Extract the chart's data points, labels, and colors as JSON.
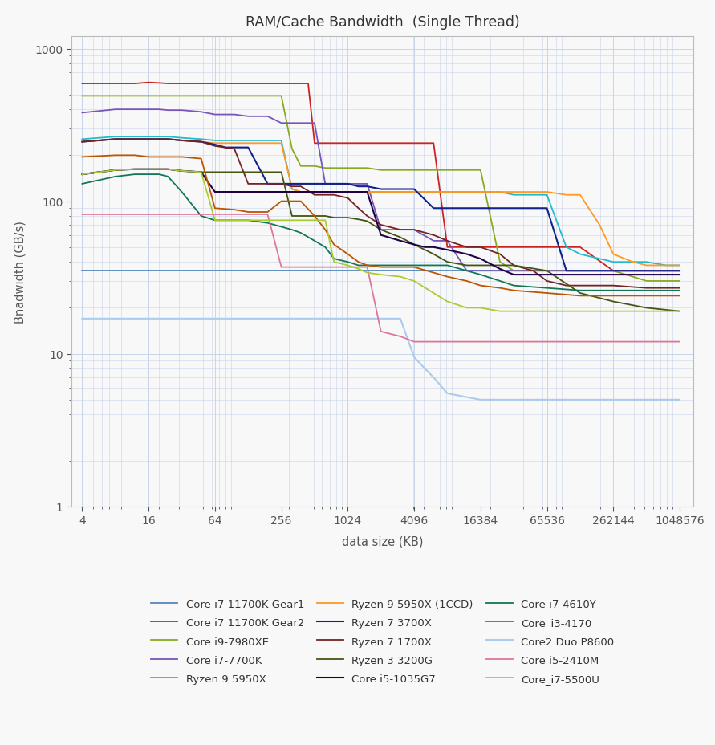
{
  "title": "RAM/Cache Bandwidth  (Single Thread)",
  "xlabel": "data size (KB)",
  "ylabel": "Bnadwidth (GB/s)",
  "x_ticks": [
    4,
    16,
    64,
    256,
    1024,
    4096,
    16384,
    65536,
    262144,
    1048576
  ],
  "y_ticks": [
    1,
    10,
    100,
    1000
  ],
  "background": "#f8f8f8",
  "grid_color": "#c8d4e8",
  "series": [
    {
      "label": "Core i7 11700K Gear1",
      "color": "#5588bb",
      "linewidth": 1.3,
      "x": [
        4,
        8,
        12,
        16,
        20,
        24,
        32,
        48,
        64,
        96,
        128,
        192,
        256,
        384,
        512,
        768,
        1024,
        1536,
        2048,
        3072,
        4096,
        6144,
        8192,
        12288,
        16384,
        24576,
        32768,
        65536,
        131072,
        262144,
        524288,
        1048576
      ],
      "y": [
        35,
        35,
        35,
        35,
        35,
        35,
        35,
        35,
        35,
        35,
        35,
        35,
        35,
        35,
        35,
        35,
        35,
        35,
        35,
        35,
        35,
        35,
        35,
        35,
        35,
        35,
        35,
        35,
        35,
        35,
        35,
        35
      ]
    },
    {
      "label": "Core i7 11700K Gear2",
      "color": "#cc2222",
      "linewidth": 1.3,
      "x": [
        4,
        8,
        12,
        16,
        20,
        24,
        32,
        48,
        64,
        80,
        96,
        112,
        128,
        192,
        256,
        320,
        384,
        448,
        512,
        640,
        768,
        1024,
        1280,
        1536,
        2048,
        2560,
        3072,
        4096,
        5120,
        6144,
        8192,
        12288,
        16384,
        24576,
        32768,
        65536,
        131072,
        262144,
        524288,
        1048576
      ],
      "y": [
        590,
        590,
        590,
        600,
        595,
        590,
        590,
        590,
        590,
        590,
        590,
        590,
        590,
        590,
        590,
        590,
        590,
        590,
        240,
        240,
        240,
        240,
        240,
        240,
        240,
        240,
        240,
        240,
        240,
        240,
        50,
        50,
        50,
        50,
        50,
        50,
        50,
        35,
        35,
        35
      ]
    },
    {
      "label": "Core i9-7980XE",
      "color": "#88aa22",
      "linewidth": 1.3,
      "x": [
        4,
        8,
        12,
        16,
        20,
        24,
        32,
        48,
        64,
        96,
        128,
        192,
        256,
        320,
        384,
        512,
        640,
        768,
        1024,
        1280,
        1536,
        2048,
        3072,
        4096,
        6144,
        8192,
        12288,
        16384,
        24576,
        32768,
        65536,
        131072,
        262144,
        524288,
        1048576
      ],
      "y": [
        490,
        490,
        490,
        490,
        490,
        490,
        490,
        490,
        490,
        490,
        490,
        490,
        490,
        220,
        170,
        170,
        165,
        165,
        165,
        165,
        165,
        160,
        160,
        160,
        160,
        160,
        160,
        160,
        40,
        35,
        35,
        35,
        35,
        30,
        30
      ]
    },
    {
      "label": "Core i7-7700K",
      "color": "#7755bb",
      "linewidth": 1.3,
      "x": [
        4,
        8,
        12,
        16,
        20,
        24,
        32,
        48,
        64,
        96,
        128,
        192,
        256,
        320,
        384,
        448,
        512,
        640,
        768,
        1024,
        1280,
        1536,
        2048,
        3072,
        4096,
        6144,
        8192,
        12288,
        16384,
        24576,
        32768,
        65536,
        131072,
        262144,
        524288,
        1048576
      ],
      "y": [
        380,
        400,
        400,
        400,
        400,
        395,
        395,
        385,
        370,
        370,
        360,
        360,
        325,
        325,
        325,
        325,
        325,
        130,
        130,
        130,
        130,
        130,
        65,
        65,
        65,
        55,
        55,
        35,
        35,
        35,
        35,
        35,
        35,
        35,
        35,
        35
      ]
    },
    {
      "label": "Ryzen 9 5950X",
      "color": "#22bbcc",
      "linewidth": 1.3,
      "x": [
        4,
        8,
        12,
        16,
        20,
        24,
        32,
        48,
        64,
        96,
        128,
        192,
        256,
        320,
        384,
        512,
        640,
        768,
        1024,
        1280,
        1536,
        2048,
        3072,
        4096,
        6144,
        8192,
        12288,
        16384,
        24576,
        32768,
        49152,
        65536,
        98304,
        131072,
        196608,
        262144,
        393216,
        524288,
        786432,
        1048576
      ],
      "y": [
        255,
        265,
        265,
        265,
        265,
        265,
        260,
        255,
        250,
        250,
        250,
        250,
        250,
        120,
        115,
        115,
        115,
        115,
        115,
        115,
        115,
        115,
        115,
        115,
        115,
        115,
        115,
        115,
        115,
        110,
        110,
        110,
        50,
        45,
        42,
        40,
        40,
        40,
        38,
        38
      ]
    },
    {
      "label": "Ryzen 9 5950X (1CCD)",
      "color": "#ff9922",
      "linewidth": 1.3,
      "x": [
        4,
        8,
        12,
        16,
        20,
        24,
        32,
        48,
        64,
        96,
        128,
        192,
        256,
        320,
        384,
        512,
        768,
        1024,
        1536,
        2048,
        3072,
        4096,
        6144,
        8192,
        12288,
        16384,
        32768,
        49152,
        65536,
        98304,
        131072,
        196608,
        262144,
        393216,
        524288,
        786432,
        1048576
      ],
      "y": [
        245,
        255,
        255,
        255,
        255,
        255,
        250,
        245,
        240,
        240,
        240,
        240,
        240,
        120,
        115,
        115,
        115,
        115,
        115,
        115,
        115,
        115,
        115,
        115,
        115,
        115,
        115,
        115,
        115,
        110,
        110,
        70,
        45,
        40,
        38,
        38,
        38
      ]
    },
    {
      "label": "Ryzen 7 3700X",
      "color": "#112288",
      "linewidth": 1.5,
      "x": [
        4,
        8,
        12,
        16,
        20,
        24,
        32,
        48,
        64,
        80,
        96,
        112,
        128,
        192,
        256,
        320,
        384,
        512,
        640,
        768,
        1024,
        1280,
        1536,
        2048,
        3072,
        4096,
        6144,
        8192,
        12288,
        16384,
        24576,
        32768,
        49152,
        65536,
        98304,
        131072,
        196608,
        262144,
        393216,
        524288,
        786432,
        1048576
      ],
      "y": [
        245,
        255,
        255,
        255,
        255,
        255,
        250,
        245,
        235,
        225,
        225,
        225,
        225,
        130,
        130,
        130,
        130,
        130,
        130,
        130,
        130,
        125,
        125,
        120,
        120,
        120,
        90,
        90,
        90,
        90,
        90,
        90,
        90,
        90,
        35,
        35,
        35,
        35,
        35,
        35,
        35,
        35
      ]
    },
    {
      "label": "Ryzen 7 1700X",
      "color": "#772222",
      "linewidth": 1.3,
      "x": [
        4,
        8,
        12,
        16,
        20,
        24,
        32,
        48,
        64,
        96,
        128,
        192,
        256,
        320,
        384,
        512,
        640,
        768,
        1024,
        1280,
        1536,
        2048,
        3072,
        4096,
        6144,
        8192,
        12288,
        16384,
        24576,
        32768,
        49152,
        65536,
        98304,
        131072,
        262144,
        524288,
        1048576
      ],
      "y": [
        245,
        255,
        255,
        255,
        255,
        255,
        250,
        245,
        230,
        220,
        130,
        130,
        130,
        125,
        125,
        110,
        110,
        110,
        105,
        90,
        80,
        70,
        65,
        65,
        60,
        55,
        50,
        50,
        45,
        38,
        35,
        30,
        28,
        28,
        28,
        27,
        27
      ]
    },
    {
      "label": "Ryzen 3 3200G",
      "color": "#445511",
      "linewidth": 1.3,
      "x": [
        4,
        8,
        12,
        16,
        20,
        24,
        32,
        48,
        64,
        96,
        128,
        192,
        256,
        320,
        384,
        512,
        640,
        768,
        1024,
        1280,
        1536,
        2048,
        3072,
        4096,
        6144,
        8192,
        12288,
        16384,
        24576,
        32768,
        65536,
        131072,
        262144,
        524288,
        1048576
      ],
      "y": [
        150,
        160,
        162,
        162,
        162,
        162,
        158,
        155,
        155,
        155,
        155,
        155,
        155,
        80,
        80,
        80,
        80,
        78,
        78,
        76,
        74,
        65,
        58,
        52,
        45,
        40,
        38,
        38,
        38,
        38,
        35,
        25,
        22,
        20,
        19
      ]
    },
    {
      "label": "Core i5-1035G7",
      "color": "#220044",
      "linewidth": 1.5,
      "x": [
        4,
        8,
        12,
        16,
        20,
        24,
        32,
        48,
        64,
        96,
        128,
        192,
        256,
        320,
        384,
        512,
        640,
        768,
        1024,
        1280,
        1536,
        2048,
        3072,
        4096,
        5120,
        6144,
        8192,
        12288,
        16384,
        24576,
        32768,
        65536,
        131072,
        262144,
        524288,
        1048576
      ],
      "y": [
        150,
        160,
        162,
        162,
        162,
        162,
        158,
        155,
        115,
        115,
        115,
        115,
        115,
        115,
        115,
        115,
        115,
        115,
        115,
        115,
        115,
        60,
        55,
        52,
        50,
        50,
        48,
        45,
        42,
        36,
        33,
        33,
        33,
        33,
        33,
        33
      ]
    },
    {
      "label": "Core i7-4610Y",
      "color": "#117755",
      "linewidth": 1.3,
      "x": [
        4,
        8,
        12,
        16,
        20,
        24,
        32,
        48,
        64,
        96,
        128,
        192,
        256,
        320,
        384,
        512,
        640,
        768,
        1024,
        1280,
        1536,
        2048,
        3072,
        4096,
        6144,
        8192,
        12288,
        16384,
        24576,
        32768,
        65536,
        131072,
        262144,
        524288,
        1048576
      ],
      "y": [
        130,
        145,
        150,
        150,
        150,
        145,
        115,
        80,
        75,
        75,
        75,
        72,
        68,
        65,
        62,
        55,
        50,
        42,
        40,
        38,
        38,
        38,
        38,
        38,
        38,
        38,
        35,
        33,
        30,
        28,
        27,
        26,
        26,
        26,
        26
      ]
    },
    {
      "label": "Core_i3-4170",
      "color": "#bb5500",
      "linewidth": 1.3,
      "x": [
        4,
        8,
        12,
        16,
        20,
        24,
        32,
        48,
        64,
        96,
        128,
        192,
        256,
        320,
        384,
        512,
        640,
        768,
        1024,
        1280,
        1536,
        2048,
        3072,
        4096,
        6144,
        8192,
        12288,
        16384,
        24576,
        32768,
        65536,
        131072,
        262144,
        524288,
        1048576
      ],
      "y": [
        195,
        200,
        200,
        195,
        195,
        195,
        195,
        190,
        90,
        88,
        85,
        85,
        100,
        100,
        100,
        80,
        65,
        52,
        45,
        40,
        38,
        37,
        37,
        37,
        34,
        32,
        30,
        28,
        27,
        26,
        25,
        24,
        24,
        24,
        24
      ]
    },
    {
      "label": "Core2 Duo P8600",
      "color": "#aaccee",
      "linewidth": 1.5,
      "x": [
        4,
        8,
        12,
        16,
        20,
        24,
        32,
        48,
        64,
        96,
        128,
        192,
        256,
        384,
        512,
        768,
        1024,
        1536,
        2048,
        3072,
        4096,
        5120,
        6144,
        8192,
        12288,
        16384,
        32768,
        65536,
        131072,
        262144,
        524288,
        1048576
      ],
      "y": [
        17,
        17,
        17,
        17,
        17,
        17,
        17,
        17,
        17,
        17,
        17,
        17,
        17,
        17,
        17,
        17,
        17,
        17,
        17,
        17,
        9.5,
        8,
        7,
        5.5,
        5.2,
        5.0,
        5.0,
        5.0,
        5.0,
        5.0,
        5.0,
        5.0
      ]
    },
    {
      "label": "Core i5-2410M",
      "color": "#dd7799",
      "linewidth": 1.3,
      "x": [
        4,
        8,
        12,
        16,
        20,
        24,
        32,
        48,
        64,
        96,
        128,
        192,
        256,
        320,
        384,
        512,
        640,
        768,
        1024,
        1280,
        1536,
        2048,
        3072,
        4096,
        6144,
        8192,
        16384,
        32768,
        65536,
        131072,
        262144,
        524288,
        1048576
      ],
      "y": [
        82,
        82,
        82,
        82,
        82,
        82,
        82,
        82,
        82,
        82,
        82,
        82,
        37,
        37,
        37,
        37,
        37,
        37,
        37,
        37,
        37,
        14,
        13,
        12,
        12,
        12,
        12,
        12,
        12,
        12,
        12,
        12,
        12
      ]
    },
    {
      "label": "Core_i7-5500U",
      "color": "#aacc33",
      "linewidth": 1.3,
      "x": [
        4,
        8,
        12,
        16,
        20,
        24,
        32,
        48,
        64,
        96,
        128,
        192,
        256,
        320,
        384,
        512,
        640,
        768,
        1024,
        1280,
        1536,
        2048,
        3072,
        4096,
        6144,
        8192,
        12288,
        16384,
        24576,
        32768,
        65536,
        131072,
        262144,
        524288,
        1048576
      ],
      "y": [
        150,
        160,
        162,
        162,
        162,
        162,
        158,
        155,
        75,
        75,
        75,
        75,
        75,
        75,
        75,
        75,
        75,
        40,
        38,
        36,
        34,
        33,
        32,
        30,
        25,
        22,
        20,
        20,
        19,
        19,
        19,
        19,
        19,
        19,
        19
      ]
    }
  ],
  "legend_order": [
    0,
    1,
    2,
    3,
    4,
    5,
    6,
    7,
    8,
    9,
    10,
    11,
    12,
    13,
    14
  ]
}
